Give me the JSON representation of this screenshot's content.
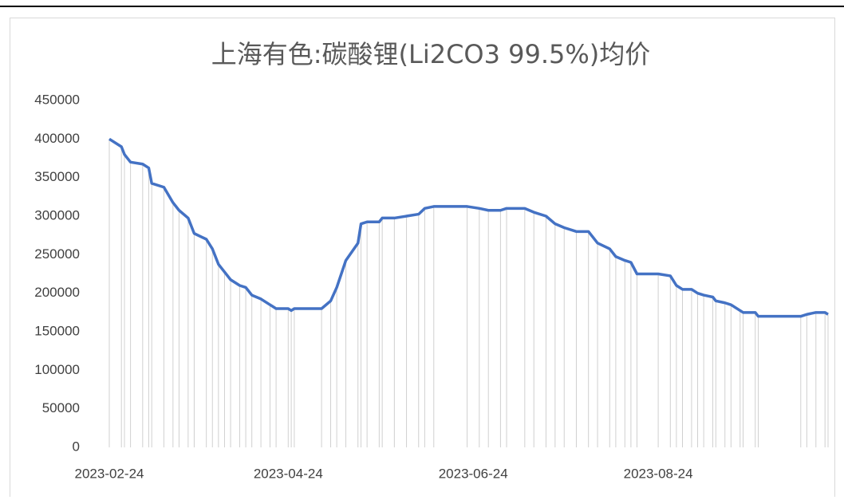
{
  "chart_data": {
    "type": "line",
    "title": "上海有色:碳酸锂(Li2CO3 99.5%)均价",
    "x": [
      "2023-02-24",
      "2023-02-28",
      "2023-03-01",
      "2023-03-03",
      "2023-03-07",
      "2023-03-09",
      "2023-03-10",
      "2023-03-14",
      "2023-03-17",
      "2023-03-19",
      "2023-03-22",
      "2023-03-24",
      "2023-03-28",
      "2023-03-30",
      "2023-04-01",
      "2023-04-03",
      "2023-04-05",
      "2023-04-08",
      "2023-04-10",
      "2023-04-12",
      "2023-04-15",
      "2023-04-18",
      "2023-04-20",
      "2023-04-24",
      "2023-04-25",
      "2023-04-26",
      "2023-05-05",
      "2023-05-08",
      "2023-05-10",
      "2023-05-13",
      "2023-05-17",
      "2023-05-18",
      "2023-05-20",
      "2023-05-24",
      "2023-05-25",
      "2023-05-29",
      "2023-06-02",
      "2023-06-06",
      "2023-06-08",
      "2023-06-11",
      "2023-06-22",
      "2023-06-26",
      "2023-06-29",
      "2023-07-03",
      "2023-07-05",
      "2023-07-11",
      "2023-07-14",
      "2023-07-18",
      "2023-07-21",
      "2023-07-24",
      "2023-07-28",
      "2023-08-01",
      "2023-08-04",
      "2023-08-08",
      "2023-08-10",
      "2023-08-13",
      "2023-08-15",
      "2023-08-17",
      "2023-08-24",
      "2023-08-28",
      "2023-08-30",
      "2023-09-01",
      "2023-09-04",
      "2023-09-06",
      "2023-09-08",
      "2023-09-11",
      "2023-09-12",
      "2023-09-15",
      "2023-09-17",
      "2023-09-20",
      "2023-09-21",
      "2023-09-25",
      "2023-09-26",
      "2023-10-10",
      "2023-10-12",
      "2023-10-15",
      "2023-10-18",
      "2023-10-19"
    ],
    "series": [
      {
        "name": "上海有色:碳酸锂(Li2CO3 99.5%)均价",
        "color": "#4472c4",
        "values": [
          400000,
          390000,
          380000,
          370000,
          367500,
          362500,
          342500,
          337500,
          317500,
          307500,
          297500,
          277500,
          270000,
          257500,
          237500,
          227500,
          217500,
          210000,
          207500,
          197500,
          192500,
          185000,
          180000,
          180000,
          177500,
          180000,
          180000,
          190000,
          207500,
          242500,
          265000,
          290000,
          292500,
          292500,
          297500,
          297500,
          300000,
          302500,
          310000,
          312500,
          312500,
          310000,
          307500,
          307500,
          310000,
          310000,
          305000,
          300000,
          290000,
          285000,
          280000,
          280000,
          265000,
          257500,
          247500,
          242500,
          240000,
          225000,
          225000,
          222500,
          210000,
          205000,
          205000,
          200000,
          197500,
          195000,
          190000,
          187500,
          185000,
          177500,
          175000,
          175000,
          170000,
          170000,
          172500,
          175000,
          175000,
          172500
        ]
      }
    ],
    "xlim": [
      "2023-02-24",
      "2023-10-19"
    ],
    "xticks": [
      "2023-02-24",
      "2023-04-24",
      "2023-06-24",
      "2023-08-24"
    ],
    "ylim": [
      0,
      450000
    ],
    "yticks": [
      0,
      50000,
      100000,
      150000,
      200000,
      250000,
      300000,
      350000,
      400000,
      450000
    ],
    "drop_lines": true
  }
}
